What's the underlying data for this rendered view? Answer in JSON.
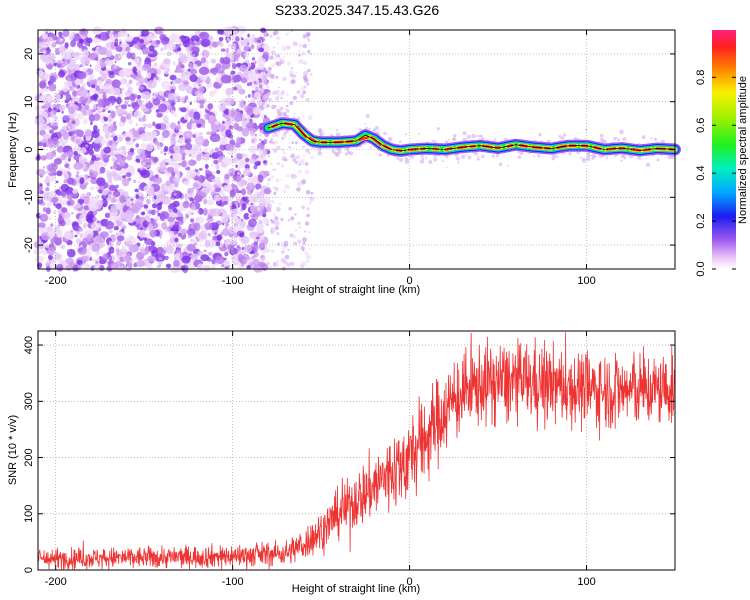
{
  "figure_title": "S233.2025.347.15.43.G26",
  "colors": {
    "signal_line": "#ee3333",
    "track_line": "#000000",
    "noise": "#7a2ee6"
  },
  "chart_data": [
    {
      "type": "heatmap",
      "name": "spectrogram",
      "xlabel": "Height of straight line (km)",
      "ylabel": "Frequency (Hz)",
      "xlim": [
        -210,
        150
      ],
      "ylim": [
        -25,
        25
      ],
      "xticks": [
        -200,
        -100,
        0,
        100
      ],
      "yticks": [
        -20,
        -10,
        0,
        10,
        20
      ],
      "noise_region_x": [
        -210,
        -80
      ],
      "sparse_noise_x": [
        -80,
        -55
      ],
      "peak_track": {
        "x": [
          -80,
          -72,
          -65,
          -60,
          -55,
          -50,
          -40,
          -30,
          -25,
          -20,
          -15,
          -10,
          -5,
          0,
          10,
          20,
          30,
          40,
          50,
          60,
          70,
          80,
          90,
          100,
          110,
          120,
          130,
          140,
          150
        ],
        "y": [
          4.5,
          5.5,
          5.2,
          3.2,
          1.8,
          1.5,
          1.5,
          1.8,
          3.0,
          2.2,
          0.8,
          0.0,
          -0.3,
          0.0,
          0.2,
          0.0,
          0.5,
          0.8,
          0.3,
          1.0,
          0.5,
          0.2,
          0.8,
          0.8,
          0.0,
          0.3,
          -0.2,
          0.2,
          0.0
        ]
      },
      "colorbar": {
        "label": "Normalized spectral amplitude",
        "range": [
          0,
          1
        ],
        "ticks": [
          "0.0",
          "0.2",
          "0.4",
          "0.6",
          "0.8"
        ]
      }
    },
    {
      "type": "line",
      "name": "snr",
      "xlabel": "Height of straight line (km)",
      "ylabel": "SNR (10 * v/v)",
      "xlim": [
        -210,
        150
      ],
      "ylim": [
        0,
        425
      ],
      "xticks": [
        -200,
        -100,
        0,
        100
      ],
      "yticks": [
        0,
        100,
        200,
        300,
        400
      ],
      "trend": {
        "x": [
          -210,
          -150,
          -100,
          -70,
          -60,
          -50,
          -40,
          -30,
          -20,
          -10,
          0,
          10,
          20,
          30,
          40,
          50,
          70,
          90,
          110,
          130,
          150
        ],
        "y": [
          20,
          22,
          25,
          30,
          45,
          70,
          100,
          125,
          150,
          175,
          200,
          240,
          285,
          315,
          330,
          335,
          335,
          325,
          320,
          320,
          320
        ]
      },
      "noise_amplitude": {
        "x": [
          -210,
          -70,
          -40,
          0,
          30,
          150
        ],
        "y": [
          12,
          15,
          30,
          55,
          50,
          45
        ]
      }
    }
  ]
}
